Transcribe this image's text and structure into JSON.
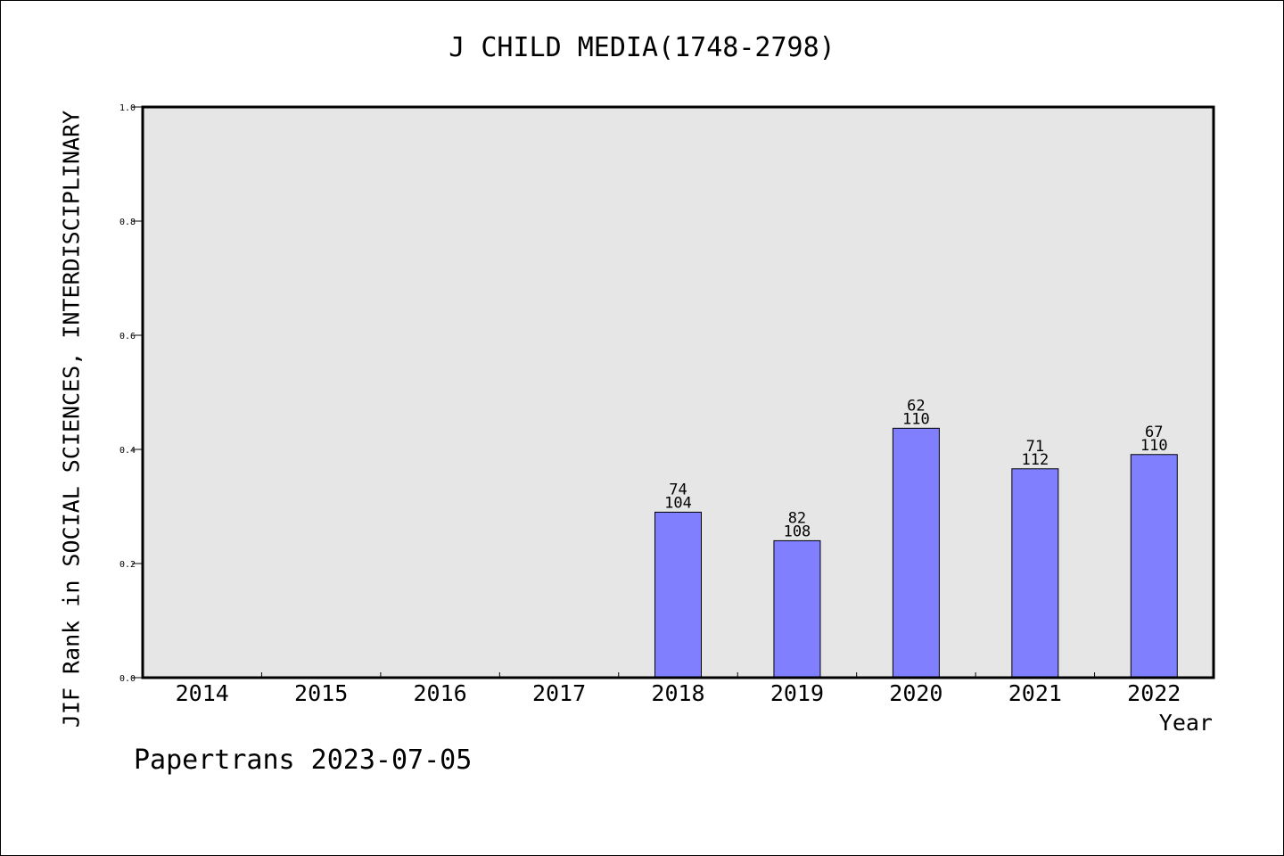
{
  "chart_data": {
    "type": "bar",
    "title": "J CHILD MEDIA(1748-2798)",
    "ylabel": "JIF Rank in SOCIAL SCIENCES, INTERDISCIPLINARY",
    "xlabel": "Year",
    "categories": [
      "2014",
      "2015",
      "2016",
      "2017",
      "2018",
      "2019",
      "2020",
      "2021",
      "2022"
    ],
    "values": [
      null,
      null,
      null,
      null,
      0.29,
      0.24,
      0.437,
      0.366,
      0.391
    ],
    "bar_labels": [
      null,
      null,
      null,
      null,
      {
        "rank": "74",
        "total": "104"
      },
      {
        "rank": "82",
        "total": "108"
      },
      {
        "rank": "62",
        "total": "110"
      },
      {
        "rank": "71",
        "total": "112"
      },
      {
        "rank": "67",
        "total": "110"
      }
    ],
    "ylim": [
      0,
      1.0
    ],
    "yticks": [
      "0.0",
      "0.2",
      "0.4",
      "0.6",
      "0.8",
      "1.0"
    ],
    "grid": false,
    "colors": {
      "bar": "#8080ff",
      "plot_background": "#e6e6e6"
    }
  },
  "footer": "Papertrans 2023-07-05"
}
